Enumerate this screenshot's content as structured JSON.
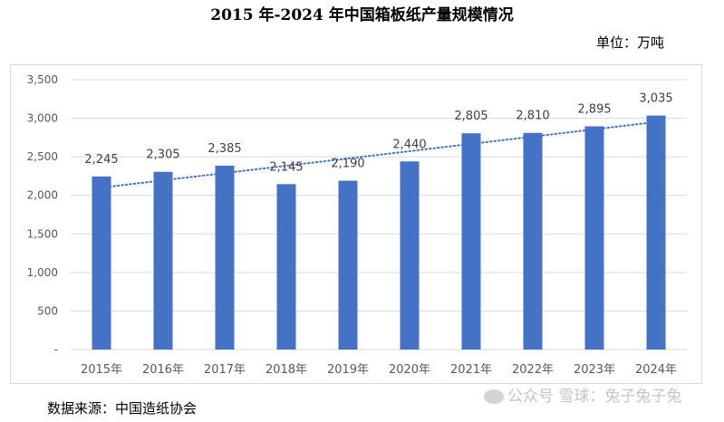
{
  "header": {
    "title": "2015 年-2024 年中国箱板纸产量规模情况",
    "unit": "单位：万吨"
  },
  "footer": {
    "source": "数据来源：中国造纸协会"
  },
  "watermark": {
    "text": "公众号 雪球：兔子兔子兔"
  },
  "colors": {
    "bar": "#4472c4",
    "trendline": "#4472c4",
    "grid": "#d9d9d9"
  },
  "chart_data": {
    "type": "bar",
    "title": "2015 年-2024 年中国箱板纸产量规模情况",
    "ylabel": "",
    "xlabel": "",
    "categories": [
      "2015年",
      "2016年",
      "2017年",
      "2018年",
      "2019年",
      "2020年",
      "2021年",
      "2022年",
      "2023年",
      "2024年"
    ],
    "values": [
      2245,
      2305,
      2385,
      2145,
      2190,
      2440,
      2805,
      2810,
      2895,
      3035
    ],
    "value_labels": [
      "2,245",
      "2,305",
      "2,385",
      "2,145",
      "2,190",
      "2,440",
      "2,805",
      "2,810",
      "2,895",
      "3,035"
    ],
    "ylim": [
      0,
      3500
    ],
    "yticks": [
      0,
      500,
      1000,
      1500,
      2000,
      2500,
      3000,
      3500
    ],
    "ytick_labels": [
      "-",
      "500",
      "1,000",
      "1,500",
      "2,000",
      "2,500",
      "3,000",
      "3,500"
    ],
    "grid": true,
    "trendline": {
      "type": "linear",
      "style": "dotted"
    },
    "legend": "none"
  }
}
